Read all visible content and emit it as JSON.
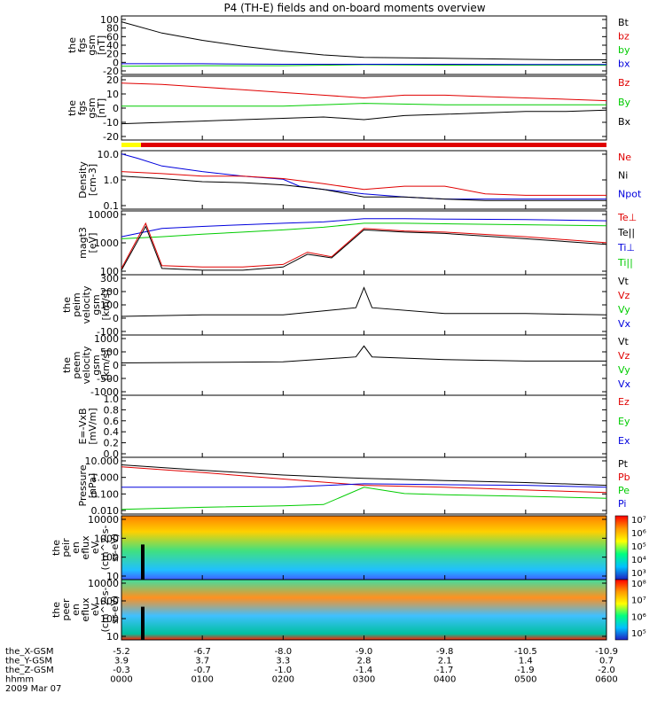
{
  "title": "P4 (TH-E) fields and on-board moments overview",
  "orbit": {
    "rows": [
      {
        "label": "the_X-GSM",
        "values": [
          "-5.2",
          "-6.7",
          "-8.0",
          "-9.0",
          "-9.8",
          "-10.5",
          "-10.9"
        ]
      },
      {
        "label": "the_Y-GSM",
        "values": [
          "3.9",
          "3.7",
          "3.3",
          "2.8",
          "2.1",
          "1.4",
          "0.7"
        ]
      },
      {
        "label": "the_Z-GSM",
        "values": [
          "-0.3",
          "-0.7",
          "-1.0",
          "-1.4",
          "-1.7",
          "-1.9",
          "-2.0"
        ]
      },
      {
        "label": "hhmm",
        "values": [
          "0000",
          "0100",
          "0200",
          "0300",
          "0400",
          "0500",
          "0600"
        ]
      }
    ],
    "date": "2009 Mar 07"
  },
  "colors": {
    "black": "#000000",
    "red": "#e00000",
    "green": "#00cc00",
    "blue": "#0000dd",
    "yellow": "#ffff00"
  },
  "chart_data": [
    {
      "type": "line",
      "ylabel": [
        "the",
        "fgs",
        "gsm",
        "[nT]"
      ],
      "ylim": [
        -20,
        100
      ],
      "ytick_labels": [
        "100",
        "80",
        "60",
        "40",
        "20",
        "0",
        "-20"
      ],
      "legend": [
        {
          "name": "Bt",
          "color": "#000000"
        },
        {
          "name": "bz",
          "color": "#e00000"
        },
        {
          "name": "by",
          "color": "#00cc00"
        },
        {
          "name": "bx",
          "color": "#0000dd"
        }
      ],
      "series": [
        {
          "name": "Bt",
          "color": "#000000",
          "x": [
            0,
            0.5,
            1,
            1.5,
            2,
            2.5,
            3,
            3.5,
            4,
            4.5,
            5,
            5.5,
            6
          ],
          "y": [
            88,
            65,
            50,
            38,
            28,
            20,
            15,
            14,
            13,
            12,
            11,
            10,
            10
          ]
        },
        {
          "name": "by",
          "color": "#00cc00",
          "x": [
            0,
            1,
            2,
            3,
            4,
            5,
            6
          ],
          "y": [
            -3,
            -2,
            -2,
            0,
            -1,
            -1,
            -1
          ]
        },
        {
          "name": "bx",
          "color": "#0000dd",
          "x": [
            0,
            1,
            2,
            3,
            4,
            5,
            6
          ],
          "y": [
            2,
            2,
            1,
            1,
            1,
            0.5,
            0.5
          ]
        }
      ]
    },
    {
      "type": "line",
      "ylabel": [
        "the",
        "fgs",
        "gsm",
        "[nT]"
      ],
      "ylim": [
        -25,
        22
      ],
      "ytick_labels": [
        "20",
        "10",
        "0",
        "-10",
        "-20"
      ],
      "legend": [
        {
          "name": "Bz",
          "color": "#e00000"
        },
        {
          "name": "By",
          "color": "#00cc00"
        },
        {
          "name": "Bx",
          "color": "#000000"
        }
      ],
      "series": [
        {
          "name": "Bz",
          "color": "#e00000",
          "x": [
            0,
            0.5,
            1,
            1.5,
            2,
            2.5,
            3,
            3.5,
            4,
            4.5,
            5,
            5.5,
            6
          ],
          "y": [
            17,
            16,
            14,
            12,
            10,
            8,
            6,
            8,
            8,
            7,
            6,
            5,
            4
          ]
        },
        {
          "name": "By",
          "color": "#00cc00",
          "x": [
            0,
            1,
            2,
            3,
            4,
            5,
            6
          ],
          "y": [
            0,
            0,
            0,
            2,
            1,
            1,
            1
          ]
        },
        {
          "name": "Bx",
          "color": "#000000",
          "x": [
            0,
            0.5,
            1,
            1.5,
            2,
            2.5,
            3,
            3.5,
            4,
            4.5,
            5,
            5.5,
            6
          ],
          "y": [
            -13,
            -12,
            -11,
            -10,
            -9,
            -8,
            -10,
            -7,
            -6,
            -5,
            -4,
            -4,
            -3
          ]
        }
      ]
    },
    {
      "type": "line",
      "yscale": "log",
      "ylabel": [
        "Density",
        "[cm-3]"
      ],
      "ylim": [
        0.1,
        20
      ],
      "ytick_labels": [
        "10.0",
        "1.0",
        "0.1"
      ],
      "legend": [
        {
          "name": "Ne",
          "color": "#e00000"
        },
        {
          "name": "Ni",
          "color": "#000000"
        },
        {
          "name": "Npot",
          "color": "#0000dd"
        }
      ],
      "series": [
        {
          "name": "Npot",
          "color": "#0000dd",
          "x": [
            0,
            0.2,
            0.5,
            1,
            1.5,
            2,
            2.2,
            2.5,
            3,
            3.5,
            4,
            5,
            6
          ],
          "y": [
            15,
            10,
            5,
            3,
            2,
            1.5,
            0.8,
            0.6,
            0.4,
            0.3,
            0.25,
            0.25,
            0.25
          ]
        },
        {
          "name": "Ne",
          "color": "#e00000",
          "x": [
            0,
            0.5,
            1,
            1.5,
            2,
            2.5,
            3,
            3.5,
            4,
            4.5,
            5,
            5.5,
            6
          ],
          "y": [
            3,
            2.5,
            2,
            2,
            1.6,
            1,
            0.6,
            0.8,
            0.8,
            0.4,
            0.35,
            0.35,
            0.35
          ]
        },
        {
          "name": "Ni",
          "color": "#000000",
          "x": [
            0,
            0.5,
            1,
            1.5,
            2,
            2.5,
            3,
            3.5,
            4,
            4.5,
            5,
            5.5,
            6
          ],
          "y": [
            2,
            1.6,
            1.2,
            1.1,
            0.9,
            0.6,
            0.3,
            0.3,
            0.25,
            0.22,
            0.22,
            0.22,
            0.22
          ]
        }
      ]
    },
    {
      "type": "line",
      "yscale": "log",
      "ylabel": [
        "magt3",
        "[eV]"
      ],
      "ylim": [
        40,
        12000
      ],
      "ytick_labels": [
        "10000",
        "1000",
        "100"
      ],
      "legend": [
        {
          "name": "Te⊥",
          "color": "#e00000"
        },
        {
          "name": "Te||",
          "color": "#000000"
        },
        {
          "name": "Ti⊥",
          "color": "#0000dd"
        },
        {
          "name": "Ti||",
          "color": "#00cc00"
        }
      ],
      "series": [
        {
          "name": "Ti⊥",
          "color": "#0000dd",
          "x": [
            0,
            0.5,
            1,
            1.5,
            2,
            2.5,
            3,
            3.5,
            4,
            5,
            6
          ],
          "y": [
            1200,
            2500,
            3000,
            3500,
            4000,
            4500,
            6000,
            6000,
            5800,
            5500,
            5000
          ]
        },
        {
          "name": "Ti||",
          "color": "#00cc00",
          "x": [
            0,
            0.5,
            1,
            1.5,
            2,
            2.5,
            3,
            3.5,
            4,
            5,
            6
          ],
          "y": [
            1000,
            1200,
            1500,
            1800,
            2200,
            2800,
            4000,
            4000,
            3800,
            3500,
            3200
          ]
        },
        {
          "name": "Te⊥",
          "color": "#e00000",
          "x": [
            0,
            0.3,
            0.5,
            1,
            1.5,
            2,
            2.3,
            2.6,
            3,
            3.5,
            4,
            5,
            6
          ],
          "y": [
            70,
            4000,
            90,
            80,
            80,
            100,
            300,
            200,
            2500,
            2000,
            1800,
            1200,
            700
          ]
        },
        {
          "name": "Te||",
          "color": "#000000",
          "x": [
            0,
            0.3,
            0.5,
            1,
            1.5,
            2,
            2.3,
            2.6,
            3,
            3.5,
            4,
            5,
            6
          ],
          "y": [
            60,
            3000,
            70,
            60,
            60,
            80,
            250,
            180,
            2200,
            1800,
            1600,
            1000,
            600
          ]
        }
      ]
    },
    {
      "type": "line",
      "ylabel": [
        "the",
        "peim",
        "velocity",
        "gsm",
        "[km/s]"
      ],
      "ylim": [
        -110,
        310
      ],
      "ytick_labels": [
        "300",
        "200",
        "100",
        "0",
        "-100"
      ],
      "legend": [
        {
          "name": "Vt",
          "color": "#000000"
        },
        {
          "name": "Vz",
          "color": "#e00000"
        },
        {
          "name": "Vy",
          "color": "#00cc00"
        },
        {
          "name": "Vx",
          "color": "#0000dd"
        }
      ],
      "series": [
        {
          "name": "Vt",
          "color": "#000000",
          "x": [
            0,
            1,
            2,
            2.9,
            3,
            3.1,
            4,
            5,
            6
          ],
          "y": [
            20,
            30,
            30,
            80,
            220,
            80,
            40,
            40,
            30
          ]
        }
      ]
    },
    {
      "type": "line",
      "ylabel": [
        "the",
        "peem",
        "velocity",
        "gsm",
        "[km/s]"
      ],
      "ylim": [
        -1100,
        1100
      ],
      "ytick_labels": [
        "1000",
        "500",
        "0",
        "-500",
        "-1000"
      ],
      "legend": [
        {
          "name": "Vt",
          "color": "#000000"
        },
        {
          "name": "Vz",
          "color": "#e00000"
        },
        {
          "name": "Vy",
          "color": "#00cc00"
        },
        {
          "name": "Vx",
          "color": "#0000dd"
        }
      ],
      "series": [
        {
          "name": "Vt",
          "color": "#000000",
          "x": [
            0,
            1,
            2,
            2.9,
            3,
            3.1,
            4,
            5,
            6
          ],
          "y": [
            80,
            100,
            120,
            300,
            700,
            300,
            200,
            150,
            150
          ]
        }
      ]
    },
    {
      "type": "line",
      "ylabel": [
        "E=-VxB",
        "[mV/m]"
      ],
      "ylim": [
        0,
        1
      ],
      "ytick_labels": [
        "1.0",
        "0.8",
        "0.6",
        "0.4",
        "0.2",
        "0.0"
      ],
      "legend": [
        {
          "name": "Ez",
          "color": "#e00000"
        },
        {
          "name": "Ey",
          "color": "#00cc00"
        },
        {
          "name": "Ex",
          "color": "#0000dd"
        }
      ],
      "series": []
    },
    {
      "type": "line",
      "yscale": "log",
      "ylabel": [
        "Pressure",
        "[nPa]"
      ],
      "ylim": [
        0.003,
        12
      ],
      "ytick_labels": [
        "10.000",
        "1.000",
        "0.100",
        "0.010"
      ],
      "legend": [
        {
          "name": "Pt",
          "color": "#000000"
        },
        {
          "name": "Pb",
          "color": "#e00000"
        },
        {
          "name": "Pe",
          "color": "#00cc00"
        },
        {
          "name": "Pi",
          "color": "#0000dd"
        }
      ],
      "series": [
        {
          "name": "Pt",
          "color": "#000000",
          "x": [
            0,
            1,
            2,
            3,
            4,
            5,
            6
          ],
          "y": [
            4,
            1.8,
            0.9,
            0.55,
            0.4,
            0.3,
            0.2
          ]
        },
        {
          "name": "Pb",
          "color": "#e00000",
          "x": [
            0,
            1,
            2,
            3,
            4,
            5,
            6
          ],
          "y": [
            3,
            1.3,
            0.5,
            0.2,
            0.15,
            0.1,
            0.07
          ]
        },
        {
          "name": "Pi",
          "color": "#0000dd",
          "x": [
            0,
            1,
            2,
            3,
            4,
            5,
            6
          ],
          "y": [
            0.15,
            0.15,
            0.15,
            0.25,
            0.22,
            0.2,
            0.15
          ]
        },
        {
          "name": "Pe",
          "color": "#00cc00",
          "x": [
            0,
            1,
            2,
            2.5,
            3,
            3.5,
            4,
            5,
            6
          ],
          "y": [
            0.006,
            0.008,
            0.01,
            0.012,
            0.15,
            0.06,
            0.05,
            0.04,
            0.03
          ]
        }
      ]
    },
    {
      "type": "heatmap",
      "ylabel": [
        "the",
        "peir",
        "en",
        "eflux",
        "eV",
        "(cm^2-s-",
        "sr-eV)"
      ],
      "ytick_labels": [
        "10000",
        "1000",
        "100",
        "10"
      ],
      "colorbar_labels": [
        "10⁷",
        "10⁶",
        "10⁵",
        "10⁴",
        "10³"
      ]
    },
    {
      "type": "heatmap",
      "ylabel": [
        "the",
        "peer",
        "en",
        "eflux",
        "eV",
        "(cm^2-s-",
        "sr-eV)"
      ],
      "ytick_labels": [
        "10000",
        "1000",
        "100",
        "10"
      ],
      "colorbar_labels": [
        "10⁸",
        "10⁷",
        "10⁶",
        "10⁵"
      ]
    }
  ]
}
